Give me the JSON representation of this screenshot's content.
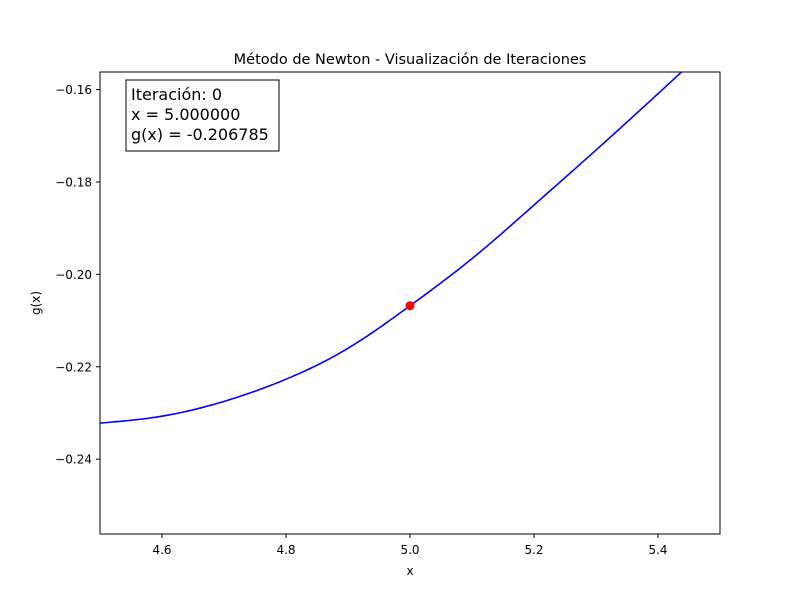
{
  "chart_data": {
    "type": "line",
    "title": "Método de Newton - Visualización de Iteraciones",
    "xlabel": "x",
    "ylabel": "g(x)",
    "xlim": [
      4.5,
      5.5
    ],
    "ylim": [
      -0.2562,
      -0.1562
    ],
    "x_ticks": [
      4.6,
      4.8,
      5.0,
      5.2,
      5.4
    ],
    "x_tick_labels": [
      "4.6",
      "4.8",
      "5.0",
      "5.2",
      "5.4"
    ],
    "y_ticks": [
      -0.16,
      -0.18,
      -0.2,
      -0.22,
      -0.24
    ],
    "y_tick_labels": [
      "−0.16",
      "−0.18",
      "−0.20",
      "−0.22",
      "−0.24"
    ],
    "grid": false,
    "series": [
      {
        "color": "#0000ff",
        "x": [
          4.5,
          4.6,
          4.7,
          4.8,
          4.9,
          5.0,
          5.1,
          5.2,
          5.3,
          5.4,
          5.45
        ],
        "y": [
          -0.2322,
          -0.2307,
          -0.2275,
          -0.2227,
          -0.216,
          -0.2068,
          -0.1966,
          -0.185,
          -0.1731,
          -0.1609,
          -0.1547
        ]
      }
    ],
    "current_point": {
      "x": 5.0,
      "y": -0.206785,
      "color": "#ff0000"
    },
    "annotation": {
      "lines": [
        "Iteración: 0",
        "x = 5.000000",
        "g(x) = -0.206785"
      ]
    }
  }
}
